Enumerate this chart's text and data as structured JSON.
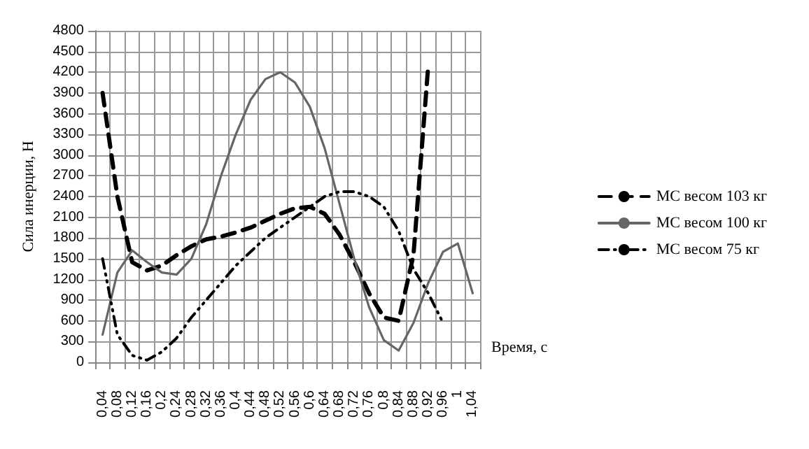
{
  "chart_data": {
    "type": "line",
    "xlabel": "Время, с",
    "ylabel": "Сила инерции, Н",
    "categories": [
      "0,04",
      "0,08",
      "0,12",
      "0,16",
      "0,2",
      "0,24",
      "0,28",
      "0,32",
      "0,36",
      "0,4",
      "0,44",
      "0,48",
      "0,52",
      "0,56",
      "0,6",
      "0,64",
      "0,68",
      "0,72",
      "0,76",
      "0,8",
      "0,84",
      "0,88",
      "0,92",
      "0,96",
      "1",
      "1,04"
    ],
    "series": [
      {
        "name": "МС весом 103 кг",
        "color": "#000000",
        "line_style": "dashed",
        "values": [
          3900,
          2400,
          1450,
          1330,
          1400,
          1550,
          1680,
          1780,
          1820,
          1880,
          1950,
          2050,
          2150,
          2230,
          2250,
          2150,
          1850,
          1450,
          1000,
          650,
          600,
          1550,
          4300,
          null,
          null,
          null
        ]
      },
      {
        "name": "МС весом 100 кг",
        "color": "#666666",
        "line_style": "solid",
        "values": [
          400,
          1300,
          1620,
          1450,
          1300,
          1270,
          1500,
          2000,
          2700,
          3300,
          3800,
          4100,
          4200,
          4050,
          3700,
          3100,
          2300,
          1500,
          800,
          320,
          170,
          570,
          1150,
          1600,
          1720,
          1000
        ]
      },
      {
        "name": "МС весом 75 кг",
        "color": "#000000",
        "line_style": "dotted",
        "values": [
          1500,
          400,
          100,
          30,
          150,
          350,
          650,
          900,
          1150,
          1400,
          1600,
          1800,
          1950,
          2100,
          2250,
          2400,
          2470,
          2470,
          2400,
          2250,
          1900,
          1350,
          1000,
          570,
          null,
          null
        ]
      }
    ],
    "ylim": [
      0,
      4800
    ],
    "yticks": [
      0,
      300,
      600,
      900,
      1200,
      1500,
      1800,
      2100,
      2400,
      2700,
      3000,
      3300,
      3600,
      3900,
      4200,
      4500,
      4800
    ],
    "grid": true,
    "legend": "right",
    "marker": "none"
  }
}
